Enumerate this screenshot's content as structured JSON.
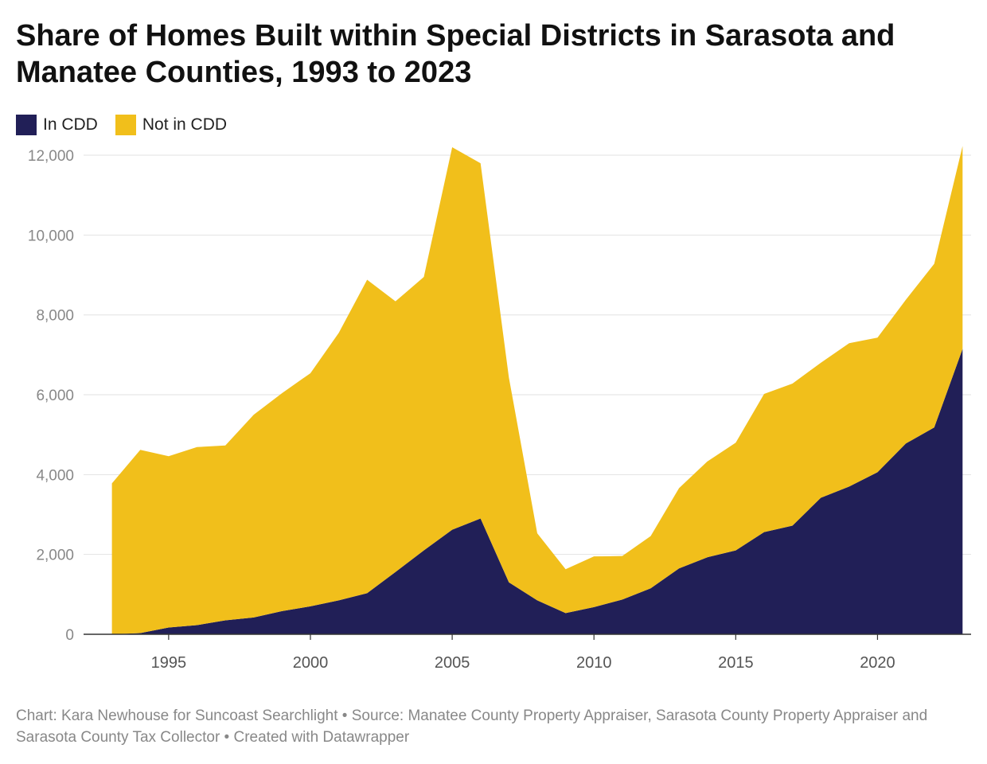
{
  "title": "Share of Homes Built within Special Districts in Sarasota and Manatee Counties, 1993 to 2023",
  "legend": [
    {
      "label": "In CDD",
      "color": "#211f57"
    },
    {
      "label": "Not in CDD",
      "color": "#f1bf1b"
    }
  ],
  "footer": "Chart: Kara Newhouse for Suncoast Searchlight • Source: Manatee County Property Appraiser, Sarasota County Property Appraiser and Sarasota County Tax Collector • Created with Datawrapper",
  "chart_data": {
    "type": "area",
    "stacked": true,
    "title": "Share of Homes Built within Special Districts in Sarasota and Manatee Counties, 1993 to 2023",
    "xlabel": "",
    "ylabel": "",
    "x": [
      1993,
      1994,
      1995,
      1996,
      1997,
      1998,
      1999,
      2000,
      2001,
      2002,
      2003,
      2004,
      2005,
      2006,
      2007,
      2008,
      2009,
      2010,
      2011,
      2012,
      2013,
      2014,
      2015,
      2016,
      2017,
      2018,
      2019,
      2020,
      2021,
      2022,
      2023
    ],
    "series": [
      {
        "name": "In CDD",
        "color": "#211f57",
        "values": [
          0,
          30,
          170,
          230,
          350,
          420,
          580,
          700,
          850,
          1030,
          1560,
          2100,
          2620,
          2900,
          1300,
          850,
          530,
          680,
          870,
          1150,
          1650,
          1930,
          2100,
          2560,
          2720,
          3420,
          3700,
          4060,
          4780,
          5180,
          7150
        ]
      },
      {
        "name": "Not in CDD",
        "color": "#f1bf1b",
        "values": [
          3780,
          4590,
          4290,
          4460,
          4380,
          5080,
          5460,
          5840,
          6700,
          7850,
          6780,
          6850,
          9580,
          8900,
          5130,
          1680,
          1100,
          1270,
          1090,
          1310,
          2010,
          2400,
          2700,
          3460,
          3560,
          3380,
          3590,
          3370,
          3600,
          4100,
          5080
        ]
      }
    ],
    "ylim": [
      0,
      12300
    ],
    "yticks": [
      0,
      2000,
      4000,
      6000,
      8000,
      10000,
      12000
    ],
    "ytick_labels": [
      "0",
      "2,000",
      "4,000",
      "6,000",
      "8,000",
      "10,000",
      "12,000"
    ],
    "xticks": [
      1995,
      2000,
      2005,
      2010,
      2015,
      2020
    ],
    "xtick_labels": [
      "1995",
      "2000",
      "2005",
      "2010",
      "2015",
      "2020"
    ],
    "grid": true,
    "legend_position": "top-left"
  }
}
